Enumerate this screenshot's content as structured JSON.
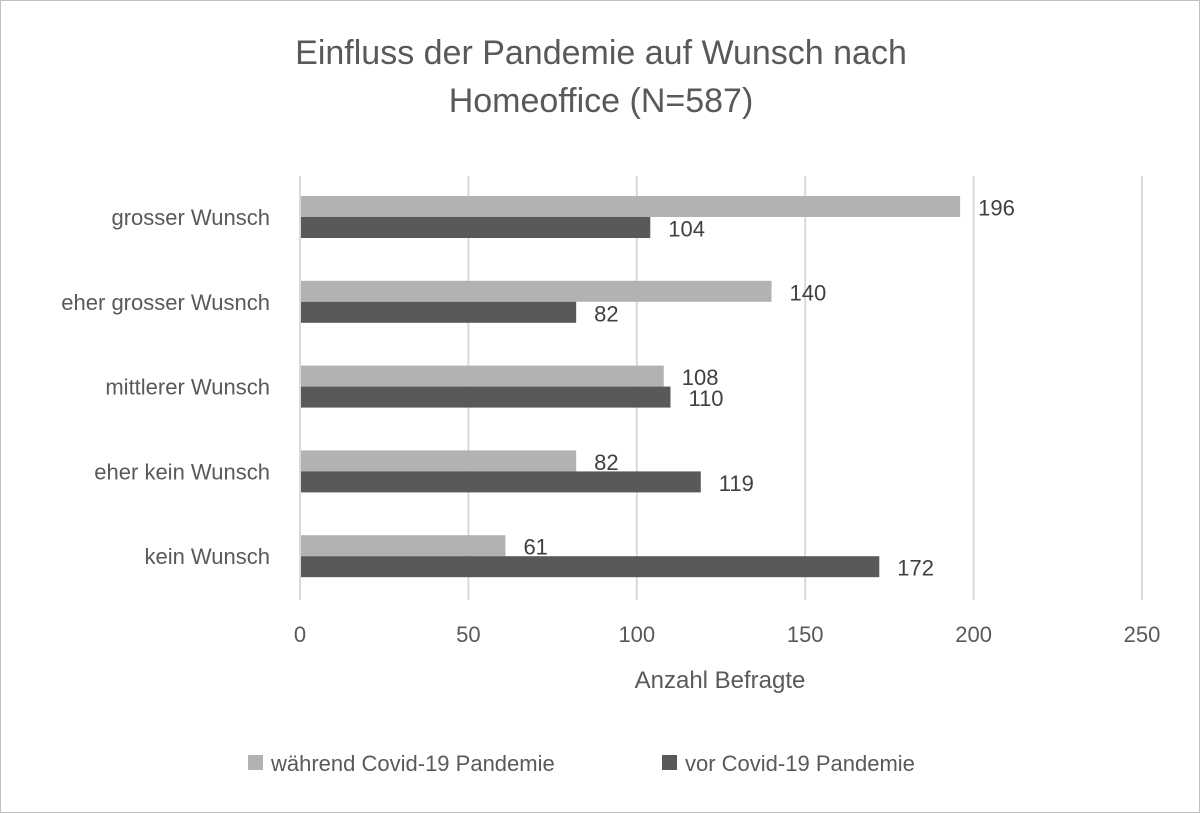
{
  "chart_data": {
    "type": "bar",
    "orientation": "horizontal",
    "title": "Einfluss der Pandemie auf Wunsch nach Homeoffice (N=587)",
    "title_lines": [
      "Einfluss der Pandemie auf Wunsch nach",
      "Homeoffice (N=587)"
    ],
    "categories": [
      "grosser Wunsch",
      "eher grosser Wusnch",
      "mittlerer Wunsch",
      "eher kein Wunsch",
      "kein Wunsch"
    ],
    "series": [
      {
        "name": "während Covid-19 Pandemie",
        "values": [
          196,
          140,
          108,
          82,
          61
        ],
        "color": "#b2b2b2"
      },
      {
        "name": "vor Covid-19 Pandemie",
        "values": [
          104,
          82,
          110,
          119,
          172
        ],
        "color": "#595959"
      }
    ],
    "xlabel": "Anzahl Befragte",
    "ylabel": "",
    "xlim": [
      0,
      250
    ],
    "xticks": [
      0,
      50,
      100,
      150,
      200,
      250
    ],
    "grid": true,
    "legend_position": "bottom",
    "data_labels": true
  }
}
